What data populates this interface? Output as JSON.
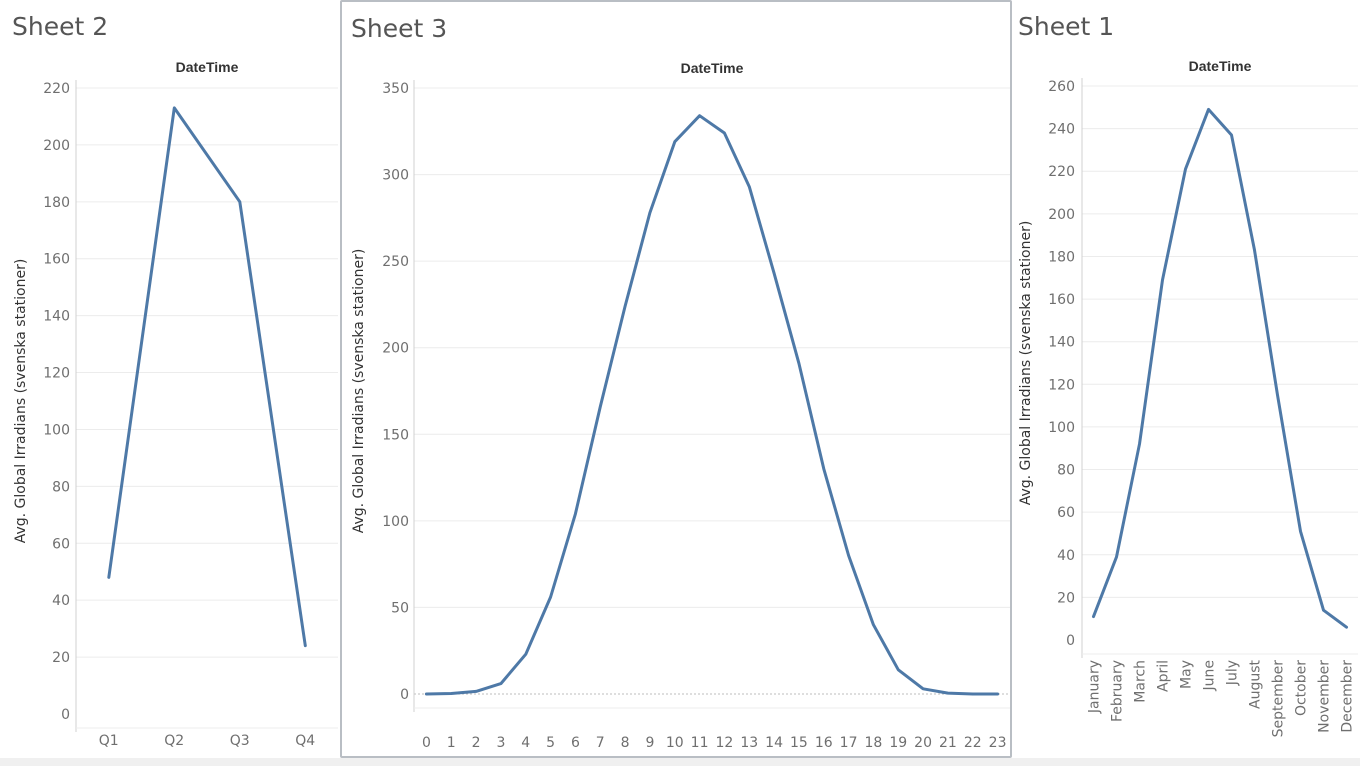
{
  "sheets": [
    {
      "id": "sheet2",
      "title": "Sheet 2"
    },
    {
      "id": "sheet3",
      "title": "Sheet 3"
    },
    {
      "id": "sheet1",
      "title": "Sheet 1"
    }
  ],
  "colors": {
    "line": "#4e79a7",
    "grid": "#ececec",
    "axis": "#d0d0d0",
    "zero": "#bdbdbd",
    "tick_text": "#6f6f6f",
    "label_text": "#333333",
    "title_text": "#555555",
    "selected_border": "#b9bec4"
  },
  "chart_data": [
    {
      "sheet": "Sheet 2",
      "type": "line",
      "column_header": "DateTime",
      "ylabel": "Avg. Global Irradians (svenska stationer)",
      "categories": [
        "Q1",
        "Q2",
        "Q3",
        "Q4"
      ],
      "values": [
        48,
        213,
        180,
        24
      ],
      "ylim": [
        0,
        220
      ],
      "yticks": [
        0,
        20,
        40,
        60,
        80,
        100,
        120,
        140,
        160,
        180,
        200,
        220
      ],
      "grid": true
    },
    {
      "sheet": "Sheet 3",
      "type": "line",
      "column_header": "DateTime",
      "ylabel": "Avg. Global Irradians (svenska stationer)",
      "categories": [
        "0",
        "1",
        "2",
        "3",
        "4",
        "5",
        "6",
        "7",
        "8",
        "9",
        "10",
        "11",
        "12",
        "13",
        "14",
        "15",
        "16",
        "17",
        "18",
        "19",
        "20",
        "21",
        "22",
        "23"
      ],
      "values": [
        0,
        0.3,
        1.5,
        6,
        23,
        56,
        104,
        166,
        224,
        278,
        319,
        334,
        324,
        293,
        243,
        191,
        130,
        80,
        40,
        14,
        3,
        0.5,
        0,
        0
      ],
      "ylim": [
        0,
        350
      ],
      "yticks": [
        0,
        50,
        100,
        150,
        200,
        250,
        300,
        350
      ],
      "grid": true,
      "zero_line": true
    },
    {
      "sheet": "Sheet 1",
      "type": "line",
      "column_header": "DateTime",
      "ylabel": "Avg. Global Irradians (svenska stationer)",
      "categories": [
        "January",
        "February",
        "March",
        "April",
        "May",
        "June",
        "July",
        "August",
        "September",
        "October",
        "November",
        "December"
      ],
      "values": [
        11,
        39,
        92,
        169,
        221,
        249,
        237,
        183,
        115,
        51,
        14,
        6
      ],
      "ylim": [
        0,
        260
      ],
      "yticks": [
        0,
        20,
        40,
        60,
        80,
        100,
        120,
        140,
        160,
        180,
        200,
        220,
        240,
        260
      ],
      "grid": true
    }
  ]
}
